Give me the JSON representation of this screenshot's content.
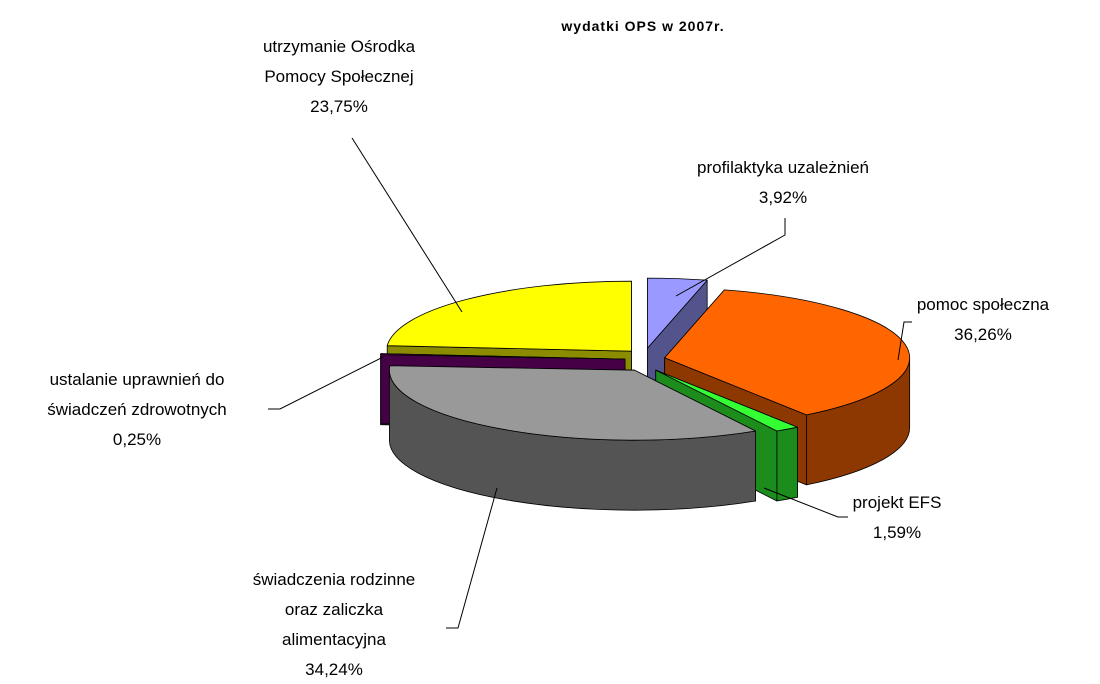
{
  "chart_data": {
    "type": "pie",
    "title": "wydatki OPS w 2007r.",
    "categories": [
      "profilaktyka uzależnień",
      "pomoc społeczna",
      "projekt EFS",
      "świadczenia rodzinne\noraz zaliczka\nalimentacyjna",
      "ustalanie uprawnień do\nświadczeń zdrowotnych",
      "utrzymanie Ośrodka\nPomocy Społecznej"
    ],
    "values": [
      3.92,
      36.26,
      1.59,
      34.24,
      0.25,
      23.75
    ],
    "value_labels": [
      "3,92%",
      "36,26%",
      "1,59%",
      "34,24%",
      "0,25%",
      "23,75%"
    ],
    "colors": [
      "#9999ff",
      "#ff6600",
      "#33ff33",
      "#999999",
      "#800080",
      "#ffff00"
    ]
  }
}
